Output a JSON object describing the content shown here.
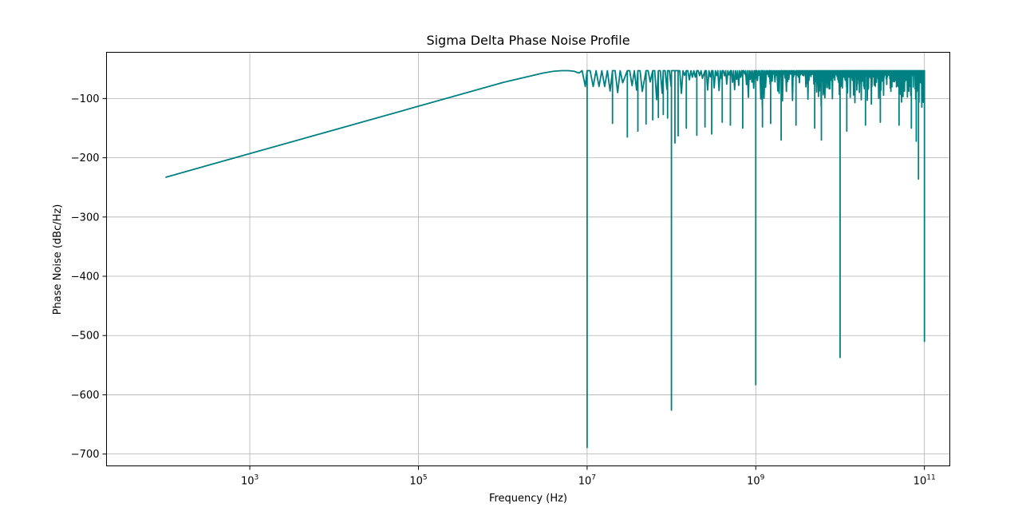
{
  "chart_data": {
    "type": "line",
    "title": "Sigma Delta Phase Noise Profile",
    "xlabel": "Frequency (Hz)",
    "ylabel": "Phase Noise (dBc/Hz)",
    "xscale": "log",
    "xlim": [
      20,
      200000000000
    ],
    "ylim": [
      -720,
      -22
    ],
    "grid": true,
    "x_ticks": [
      {
        "value": 1000,
        "base": "10",
        "exp": "3"
      },
      {
        "value": 100000,
        "base": "10",
        "exp": "5"
      },
      {
        "value": 10000000,
        "base": "10",
        "exp": "7"
      },
      {
        "value": 1000000000,
        "base": "10",
        "exp": "9"
      },
      {
        "value": 100000000000,
        "base": "10",
        "exp": "11"
      }
    ],
    "y_ticks": [
      {
        "value": -100,
        "label": "−100"
      },
      {
        "value": -200,
        "label": "−200"
      },
      {
        "value": -300,
        "label": "−300"
      },
      {
        "value": -400,
        "label": "−400"
      },
      {
        "value": -500,
        "label": "−500"
      },
      {
        "value": -600,
        "label": "−600"
      },
      {
        "value": -700,
        "label": "−700"
      }
    ],
    "series": [
      {
        "color": "#008080",
        "envelope": [
          [
            100,
            -233
          ],
          [
            1000,
            -193
          ],
          [
            10000,
            -153
          ],
          [
            100000,
            -113
          ],
          [
            1000000,
            -73
          ],
          [
            2000000,
            -63
          ],
          [
            3000000,
            -57
          ],
          [
            4000000,
            -54
          ],
          [
            5000000,
            -53
          ],
          [
            6000000,
            -53
          ],
          [
            7000000,
            -54
          ],
          [
            8000000,
            -57
          ]
        ],
        "notches": [
          [
            10000000,
            -689
          ],
          [
            20000000,
            -142
          ],
          [
            30000000,
            -165
          ],
          [
            40000000,
            -155
          ],
          [
            50000000,
            -143
          ],
          [
            60000000,
            -136
          ],
          [
            70000000,
            -132
          ],
          [
            80000000,
            -127
          ],
          [
            90000000,
            -133
          ],
          [
            100000000,
            -626
          ],
          [
            110000000,
            -175
          ],
          [
            120000000,
            -163
          ],
          [
            150000000,
            -150
          ],
          [
            200000000,
            -162
          ],
          [
            250000000,
            -148
          ],
          [
            300000000,
            -160
          ],
          [
            400000000,
            -140
          ],
          [
            500000000,
            -145
          ],
          [
            700000000,
            -150
          ],
          [
            1000000000,
            -583
          ],
          [
            1200000000,
            -148
          ],
          [
            1500000000,
            -142
          ],
          [
            2000000000,
            -170
          ],
          [
            3000000000,
            -145
          ],
          [
            5000000000,
            -150
          ],
          [
            6000000000,
            -170
          ],
          [
            10000000000,
            -537
          ],
          [
            12000000000,
            -155
          ],
          [
            20000000000,
            -145
          ],
          [
            30000000000,
            -140
          ],
          [
            50000000000,
            -145
          ],
          [
            70000000000,
            -150
          ],
          [
            80000000000,
            -172
          ],
          [
            85000000000,
            -236
          ],
          [
            100000000000,
            -510
          ]
        ],
        "ripple_band": {
          "x_start": 10000000,
          "x_end": 100000000000,
          "max": -53,
          "min": -160
        }
      }
    ]
  }
}
